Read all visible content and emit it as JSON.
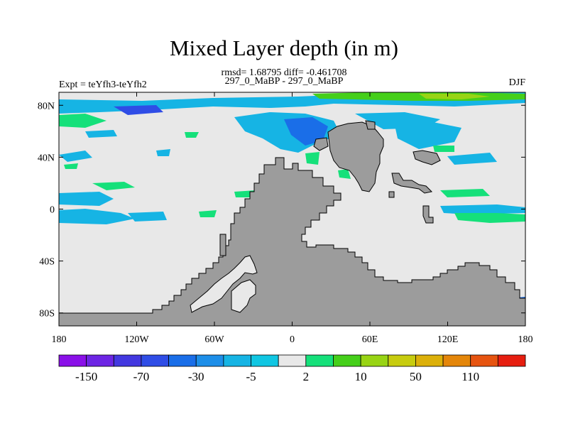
{
  "title": "Mixed Layer depth (in m)",
  "stats_line": "rmsd= 1.68795 diff= -0.461708",
  "case_line": "297_0_MaBP - 297_0_MaBP",
  "expt_label": "Expt = teYfh3-teYfh2",
  "season_label": "DJF",
  "map": {
    "lon_range": [
      -180,
      180
    ],
    "lat_range": [
      -90,
      90
    ],
    "x_ticks": [
      "180",
      "120W",
      "60W",
      "0",
      "60E",
      "120E",
      "180"
    ],
    "y_ticks": [
      "80N",
      "40N",
      "0",
      "40S",
      "80S"
    ],
    "colors": {
      "land": "#9c9c9c",
      "ocean_zero": "#e8e8e8"
    }
  },
  "colorbar": {
    "labels": [
      "-150",
      "-70",
      "-30",
      "-5",
      "2",
      "10",
      "50",
      "110"
    ],
    "colors": [
      "#8a10e8",
      "#6d25e4",
      "#4338e0",
      "#2f4de6",
      "#1a6ee8",
      "#1d8ee8",
      "#16b4e4",
      "#10c6e2",
      "#e8e8e8",
      "#15e07a",
      "#45cf1a",
      "#98d414",
      "#c7cc0e",
      "#dcb00a",
      "#e4860a",
      "#e65410",
      "#e61e10"
    ]
  }
}
